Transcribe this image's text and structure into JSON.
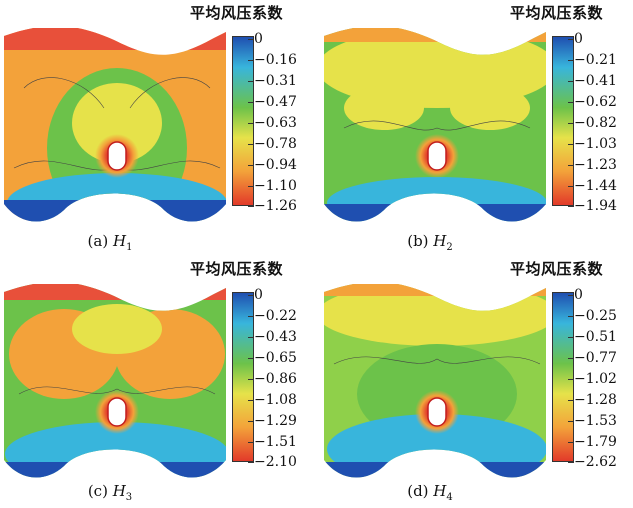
{
  "colorbar_title": "平均风压系数",
  "colors": {
    "blue": "#1f4fb0",
    "cyan": "#38b5dc",
    "green": "#6cc24a",
    "yellow": "#e6e24a",
    "orange": "#f3a23a",
    "red": "#e23a2a"
  },
  "panels": [
    {
      "caption_prefix": "(a) ",
      "caption_var": "H",
      "caption_sub": "1",
      "ticks": [
        "0",
        "−0.16",
        "−0.31",
        "−0.47",
        "−0.63",
        "−0.78",
        "−0.94",
        "−1.10",
        "−1.26"
      ]
    },
    {
      "caption_prefix": "(b) ",
      "caption_var": "H",
      "caption_sub": "2",
      "ticks": [
        "0",
        "−0.21",
        "−0.41",
        "−0.62",
        "−0.82",
        "−1.03",
        "−1.23",
        "−1.44",
        "−1.94"
      ]
    },
    {
      "caption_prefix": "(c) ",
      "caption_var": "H",
      "caption_sub": "3",
      "ticks": [
        "0",
        "−0.22",
        "−0.43",
        "−0.65",
        "−0.86",
        "−1.08",
        "−1.29",
        "−1.51",
        "−2.10"
      ]
    },
    {
      "caption_prefix": "(d) ",
      "caption_var": "H",
      "caption_sub": "4",
      "ticks": [
        "0",
        "−0.25",
        "−0.51",
        "−0.77",
        "−1.02",
        "−1.28",
        "−1.53",
        "−1.79",
        "−2.62"
      ]
    }
  ]
}
